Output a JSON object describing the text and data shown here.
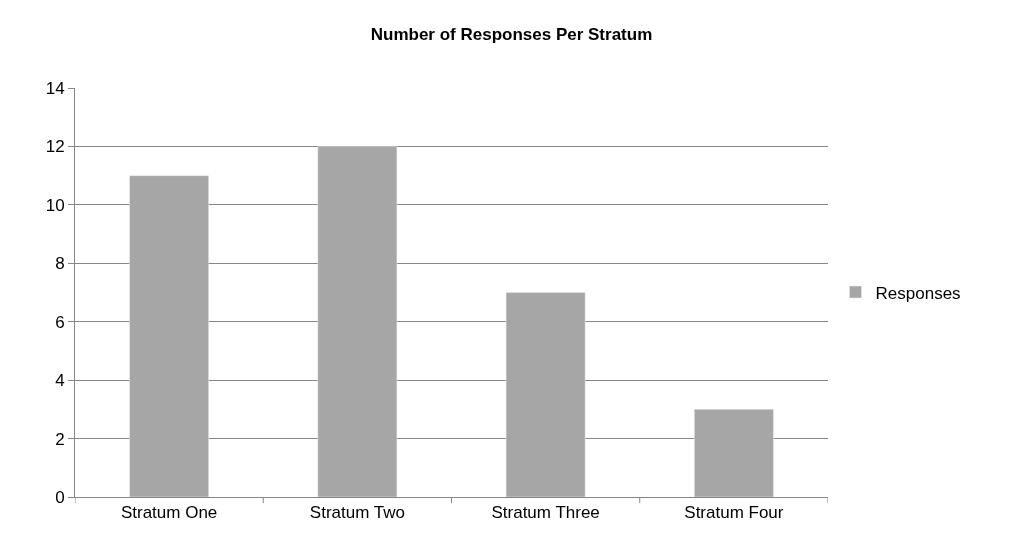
{
  "chart_data": {
    "type": "bar",
    "title": "Number of Responses Per Stratum",
    "categories": [
      "Stratum One",
      "Stratum Two",
      "Stratum Three",
      "Stratum Four"
    ],
    "series": [
      {
        "name": "Responses",
        "color": "#a6a6a6",
        "values": [
          11,
          12,
          7,
          3
        ]
      }
    ],
    "ylim": [
      0,
      14
    ],
    "yticks": [
      0,
      2,
      4,
      6,
      8,
      10,
      12,
      14
    ],
    "grid": "y",
    "legend": "right"
  }
}
